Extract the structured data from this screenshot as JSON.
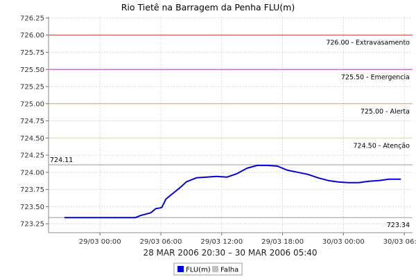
{
  "chart_data": {
    "type": "line",
    "title": "Rio Tietê na Barragem da Penha FLU(m)",
    "xlabel": "28 MAR 2006 20:30 – 30 MAR 2006 05:40",
    "ylabel": "",
    "x_unit": "hours since 28/03 20:30",
    "xlim": [
      0,
      33.17
    ],
    "ylim": [
      723.12,
      726.27
    ],
    "yticks": [
      723.25,
      723.5,
      723.75,
      724.0,
      724.25,
      724.5,
      724.75,
      725.0,
      725.25,
      725.5,
      725.75,
      726.0,
      726.25
    ],
    "ytick_labels": [
      "723.25",
      "723.50",
      "723.75",
      "724.00",
      "724.25",
      "724.50",
      "724.75",
      "725.00",
      "725.25",
      "725.50",
      "725.75",
      "726.00",
      "726.25"
    ],
    "xticks": [
      3.5,
      9.5,
      15.5,
      21.5,
      27.5,
      33.5
    ],
    "xtick_labels": [
      "29/03 00:00",
      "29/03 06:00",
      "29/03 12:00",
      "29/03 18:00",
      "30/03 00:00",
      "30/03 06:00"
    ],
    "grid": true,
    "legend_position": "bottom-center",
    "series": [
      {
        "name": "FLU(m)",
        "color": "#0000dd",
        "x": [
          0,
          7.0,
          7.5,
          8.5,
          9.0,
          9.4,
          9.6,
          10.0,
          10.5,
          11.0,
          11.5,
          12.0,
          13.0,
          14.0,
          15.0,
          16.0,
          17.0,
          18.0,
          19.0,
          20.0,
          21.0,
          22.0,
          23.0,
          24.0,
          25.0,
          26.0,
          27.0,
          28.0,
          29.0,
          30.0,
          31.0,
          32.0,
          33.17
        ],
        "y": [
          723.34,
          723.34,
          723.37,
          723.41,
          723.47,
          723.48,
          723.49,
          723.61,
          723.67,
          723.73,
          723.79,
          723.86,
          723.92,
          723.93,
          723.94,
          723.93,
          723.98,
          724.06,
          724.1,
          724.1,
          724.09,
          724.03,
          724.0,
          723.97,
          723.92,
          723.88,
          723.86,
          723.85,
          723.85,
          723.87,
          723.88,
          723.9,
          723.9
        ]
      },
      {
        "name": "Falha",
        "color": "#c0c0c0",
        "x": [],
        "y": []
      }
    ],
    "threshold_lines": [
      {
        "value": 726.0,
        "label": "726.00 - Extravasamento",
        "color": "#c0392b"
      },
      {
        "value": 725.5,
        "label": "725.50 - Emergencia",
        "color": "#c03cc0"
      },
      {
        "value": 725.0,
        "label": "725.00 - Alerta",
        "color": "#f0a030"
      },
      {
        "value": 724.5,
        "label": "724.50 - Atenção",
        "color": "#f0f000"
      },
      {
        "value": 724.11,
        "label": "724.11",
        "color": "#9a9a9a"
      },
      {
        "value": 723.34,
        "label": "723.34",
        "color": "#9a9a9a"
      }
    ]
  }
}
